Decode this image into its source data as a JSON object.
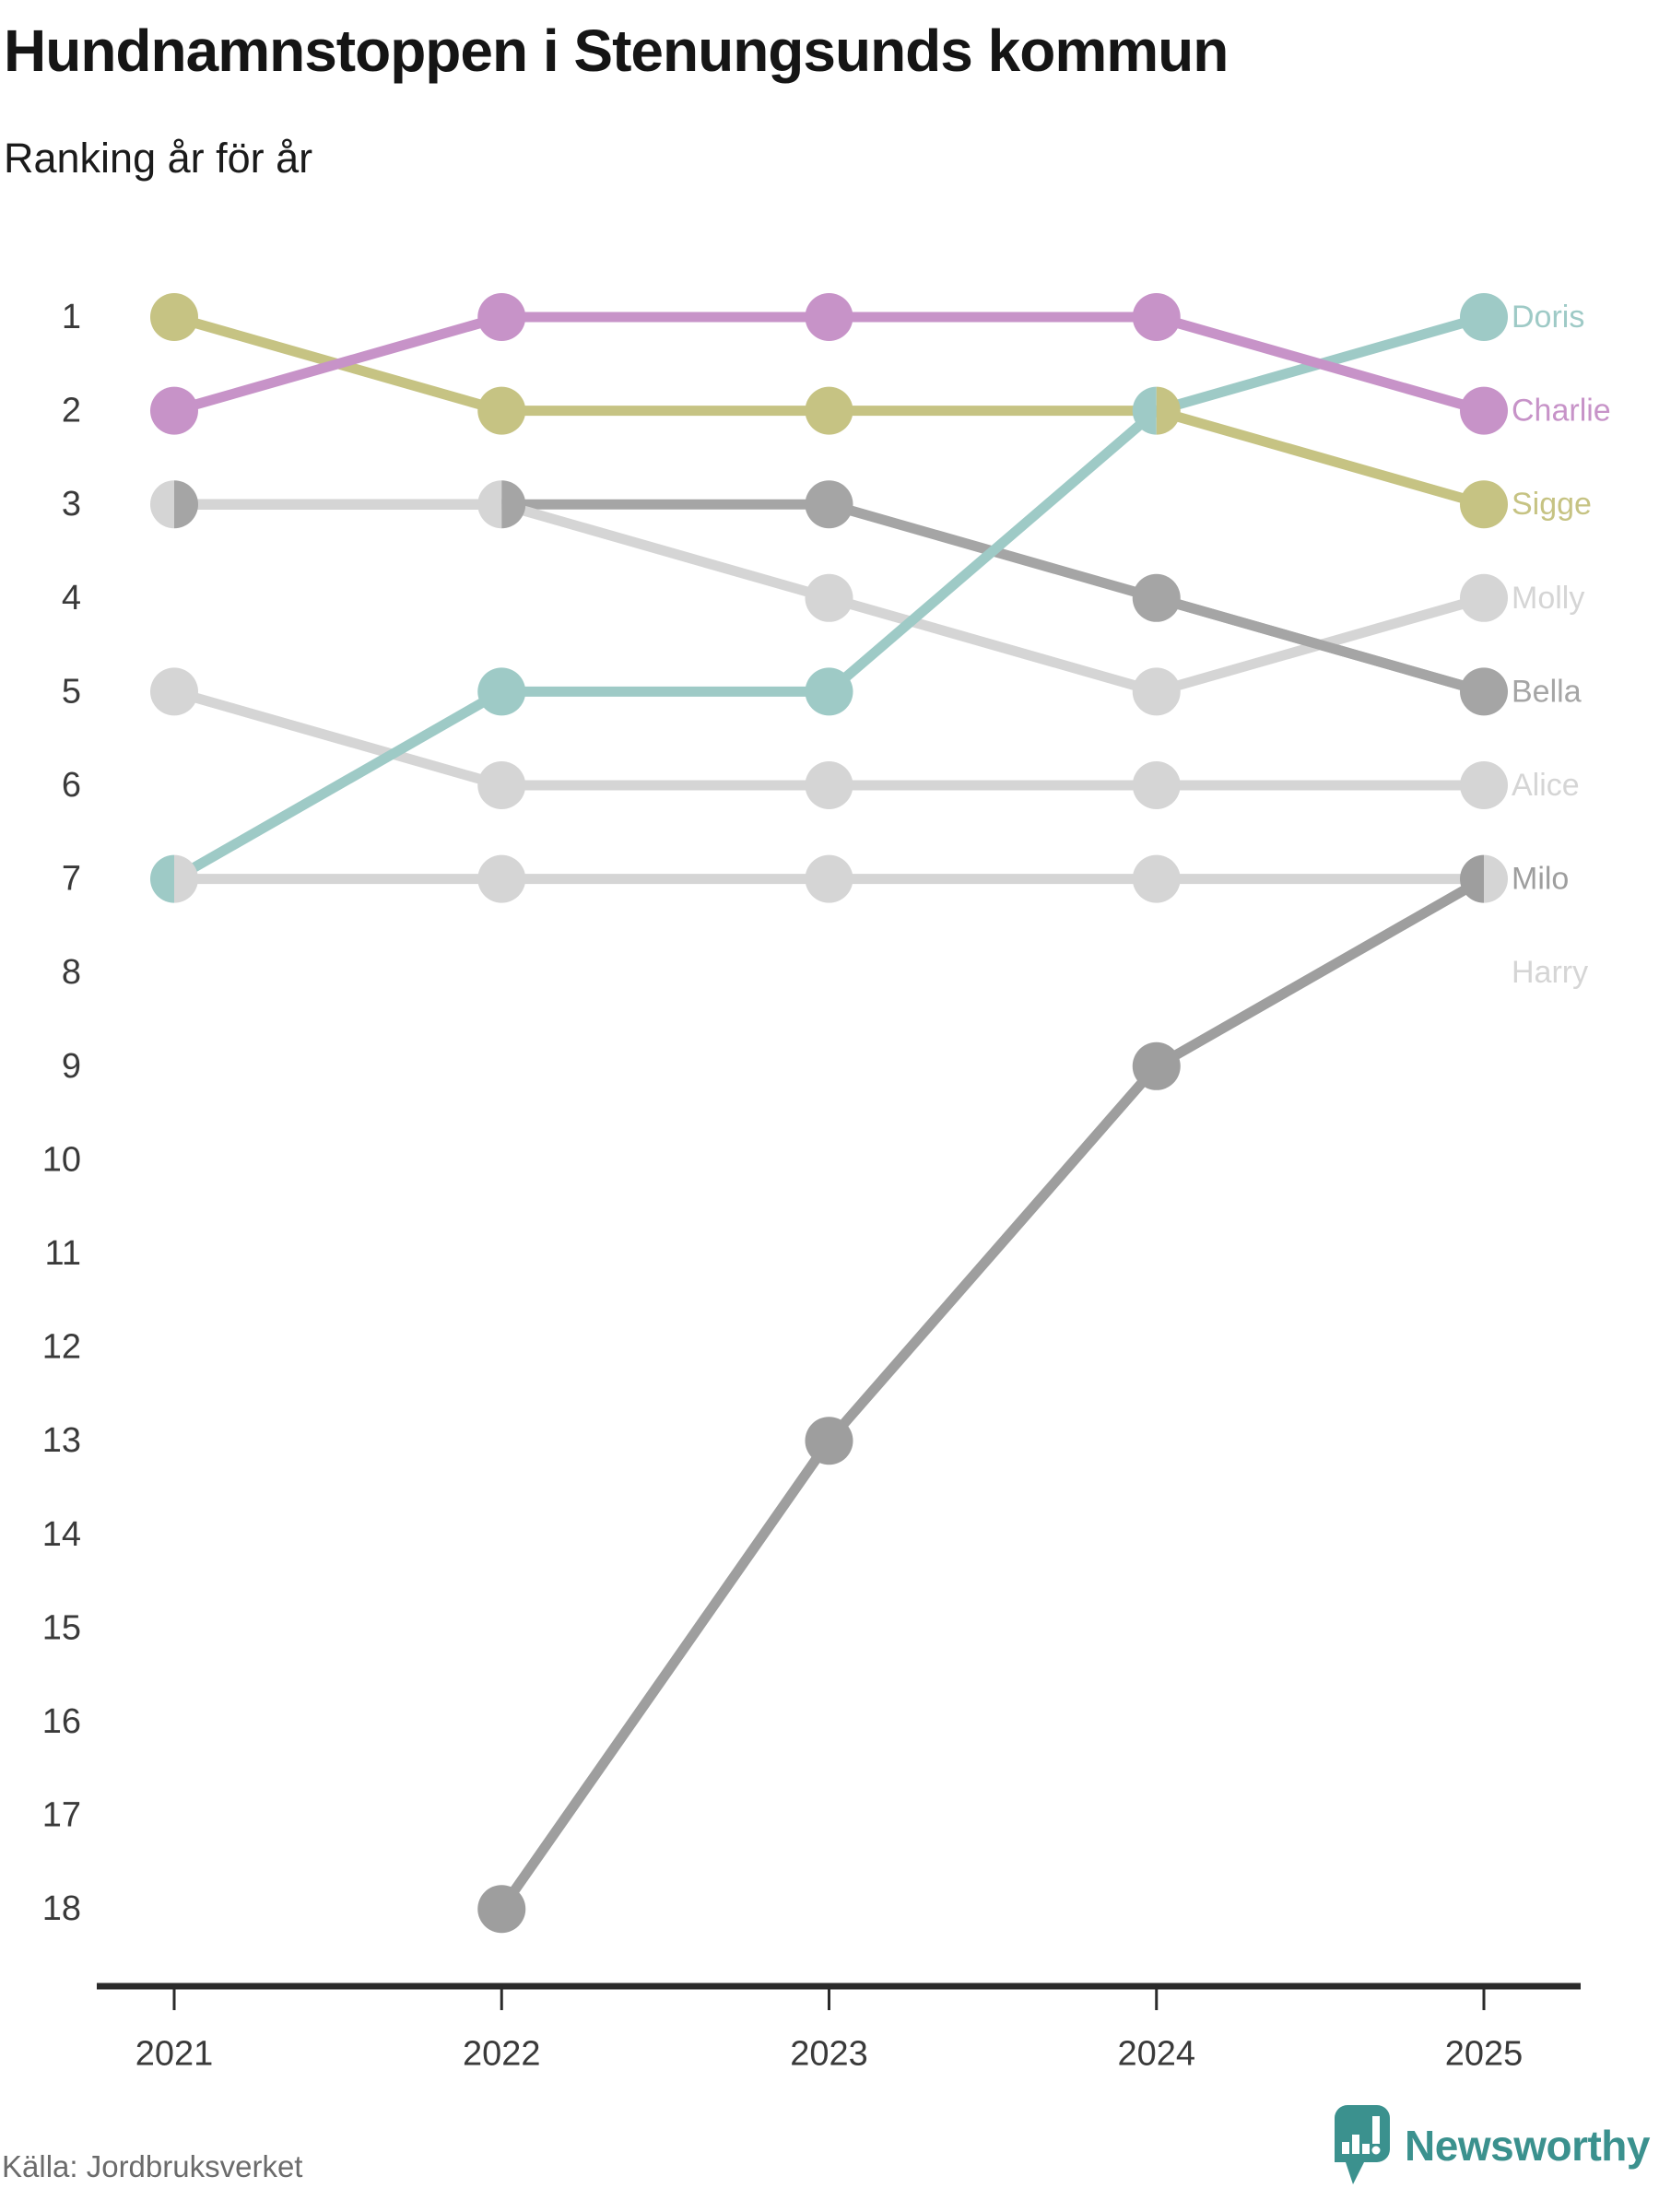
{
  "header": {
    "title": "Hundnamnstoppen i Stenungsunds kommun",
    "subtitle": "Ranking år för år"
  },
  "footer": {
    "source": "Källa: Jordbruksverket",
    "brand": "Newsworthy"
  },
  "colors": {
    "teal": "#9ecac6",
    "pink": "#c793c8",
    "olive": "#c6c383",
    "light_gray": "#d5d5d5",
    "gray": "#a5a5a5",
    "dark_gray": "#9e9e9e",
    "axis": "#2b2b2b",
    "tick_text": "#3a3a3a",
    "brand_teal": "#3b918e"
  },
  "chart_data": {
    "type": "line",
    "subtype": "bump-ranking",
    "title": "Hundnamnstoppen i Stenungsunds kommun",
    "subtitle": "Ranking år för år",
    "x": [
      2021,
      2022,
      2023,
      2024,
      2025
    ],
    "y_ticks": [
      1,
      2,
      3,
      4,
      5,
      6,
      7,
      8,
      9,
      10,
      11,
      12,
      13,
      14,
      15,
      16,
      17,
      18
    ],
    "ylim": [
      1,
      18
    ],
    "y_inverted": true,
    "grid": false,
    "legend_position": "right-end-labels",
    "series": [
      {
        "name": "Doris",
        "color_key": "teal",
        "ranks": [
          7,
          5,
          5,
          2,
          1
        ]
      },
      {
        "name": "Charlie",
        "color_key": "pink",
        "ranks": [
          2,
          1,
          1,
          1,
          2
        ]
      },
      {
        "name": "Sigge",
        "color_key": "olive",
        "ranks": [
          1,
          2,
          2,
          2,
          3
        ]
      },
      {
        "name": "Molly",
        "color_key": "light_gray",
        "ranks": [
          3,
          3,
          4,
          5,
          4
        ]
      },
      {
        "name": "Bella",
        "color_key": "gray",
        "ranks": [
          3,
          3,
          3,
          4,
          5
        ]
      },
      {
        "name": "Alice",
        "color_key": "light_gray",
        "ranks": [
          5,
          6,
          6,
          6,
          6
        ]
      },
      {
        "name": "Harry",
        "color_key": "light_gray",
        "ranks": [
          7,
          7,
          7,
          7,
          7
        ]
      },
      {
        "name": "Milo",
        "color_key": "dark_gray",
        "ranks": [
          null,
          18,
          13,
          9,
          7
        ]
      }
    ],
    "draw_order": [
      "Harry",
      "Alice",
      "Bella",
      "Molly",
      "Milo",
      "Sigge",
      "Doris",
      "Charlie"
    ],
    "overlay_segments": [
      {
        "series": "Bella",
        "from_x": 2024,
        "to_x": 2025
      }
    ],
    "shared_points": [
      {
        "x": 2021,
        "rank": 3,
        "left": "Molly",
        "right": "Bella"
      },
      {
        "x": 2021,
        "rank": 7,
        "left": "Doris",
        "right": "Harry"
      },
      {
        "x": 2022,
        "rank": 3,
        "left": "Molly",
        "right": "Bella"
      },
      {
        "x": 2024,
        "rank": 2,
        "left": "Doris",
        "right": "Sigge"
      },
      {
        "x": 2025,
        "rank": 7,
        "left": "Milo",
        "right": "Harry"
      }
    ],
    "end_labels": [
      {
        "text": "Doris",
        "at_rank": 1,
        "color_key": "teal"
      },
      {
        "text": "Charlie",
        "at_rank": 2,
        "color_key": "pink"
      },
      {
        "text": "Sigge",
        "at_rank": 3,
        "color_key": "olive"
      },
      {
        "text": "Molly",
        "at_rank": 4,
        "color_key": "light_gray"
      },
      {
        "text": "Bella",
        "at_rank": 5,
        "color_key": "gray"
      },
      {
        "text": "Alice",
        "at_rank": 6,
        "color_key": "light_gray"
      },
      {
        "text": "Milo",
        "at_rank": 7,
        "color_key": "dark_gray"
      },
      {
        "text": "Harry",
        "at_rank": 8,
        "color_key": "light_gray"
      }
    ]
  }
}
